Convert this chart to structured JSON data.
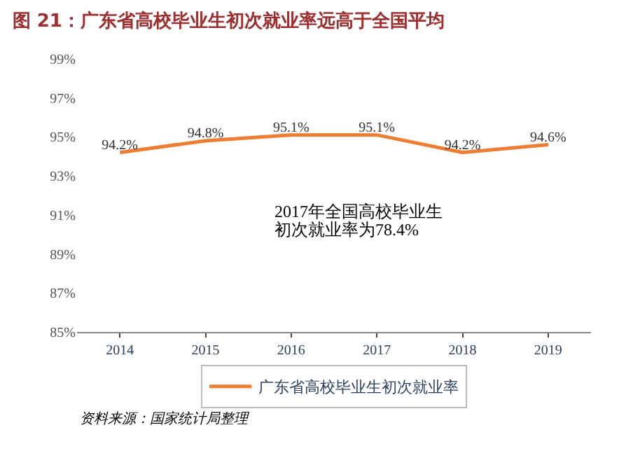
{
  "chart_data": {
    "type": "line",
    "title": "图 21：广东省高校毕业生初次就业率远高于全国平均",
    "categories": [
      "2014",
      "2015",
      "2016",
      "2017",
      "2018",
      "2019"
    ],
    "series": [
      {
        "name": "广东省高校毕业生初次就业率",
        "color": "#ed7d31",
        "values": [
          94.2,
          94.8,
          95.1,
          95.1,
          94.2,
          94.6
        ],
        "value_labels": [
          "94.2%",
          "94.8%",
          "95.1%",
          "95.1%",
          "94.2%",
          "94.6%"
        ]
      }
    ],
    "ylim": [
      85,
      99
    ],
    "yticks": [
      {
        "value": 85,
        "label": "85%"
      },
      {
        "value": 87,
        "label": "87%"
      },
      {
        "value": 89,
        "label": "89%"
      },
      {
        "value": 91,
        "label": "91%"
      },
      {
        "value": 93,
        "label": "93%"
      },
      {
        "value": 95,
        "label": "95%"
      },
      {
        "value": 97,
        "label": "97%"
      },
      {
        "value": 99,
        "label": "99%"
      }
    ],
    "annotations": [
      "2017年全国高校毕业生",
      "初次就业率为78.4%",
      "资料来源：国家统计局整理"
    ],
    "legend": "bottom",
    "marker": "none",
    "line_style": "solid"
  }
}
